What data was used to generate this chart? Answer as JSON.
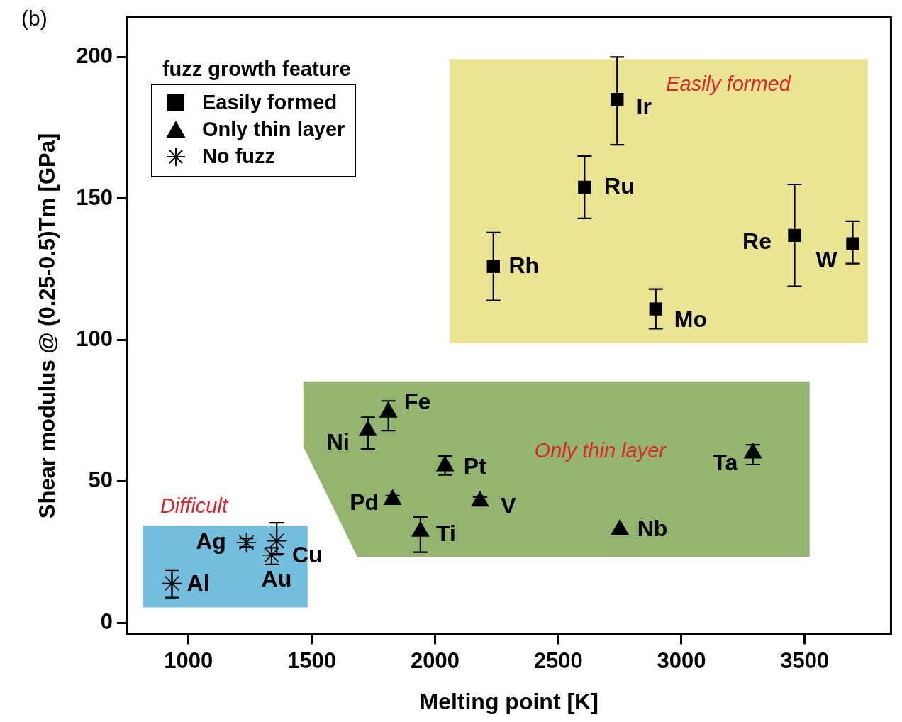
{
  "chart_data": {
    "type": "scatter",
    "xlabel": "Melting point [K]",
    "ylabel": "Shear modulus @ (0.25-0.5)Tm [GPa]",
    "legend_title": "fuzz growth feature",
    "legend": "top left",
    "xlim": [
      750,
      3850
    ],
    "xticks": [
      1000,
      1500,
      2000,
      2500,
      3000,
      3500
    ],
    "ylim": [
      -4,
      214
    ],
    "yticks": [
      0,
      50,
      100,
      150,
      200
    ],
    "series": [
      {
        "name": "Easily formed",
        "color": "#000000",
        "marker": "square",
        "x": [
          2237,
          2607,
          2739,
          2896,
          3459,
          3695
        ],
        "values": [
          126,
          154,
          185,
          111,
          137,
          134
        ],
        "errors": [
          [
            114,
            138
          ],
          [
            143,
            165
          ],
          [
            169,
            200
          ],
          [
            104,
            118
          ],
          [
            119,
            155
          ],
          [
            127,
            142
          ]
        ],
        "value_labels": [
          "Rh",
          "Ru",
          "Ir",
          "Mo",
          "Re",
          "W"
        ]
      },
      {
        "name": "Only thin layer",
        "color": "#000000",
        "marker": "triangle",
        "x": [
          1811,
          1728,
          2041,
          1828,
          2183,
          1941,
          2750,
          3290
        ],
        "values": [
          74.5,
          68,
          55.5,
          43.6,
          43,
          32.4,
          33,
          60
        ],
        "errors": [
          [
            68,
            78.5
          ],
          [
            61.5,
            72.7
          ],
          [
            52.3,
            59
          ],
          [
            42,
            45
          ],
          [
            41.5,
            44.5
          ],
          [
            25,
            37.4
          ],
          null,
          [
            56,
            63
          ]
        ],
        "value_labels": [
          "Fe",
          "Ni",
          "Pt",
          "Pd",
          "V",
          "Ti",
          "Nb",
          "Ta"
        ]
      },
      {
        "name": "No fuzz",
        "color": "#000000",
        "marker": "cross",
        "x": [
          933,
          1235,
          1337,
          1358
        ],
        "values": [
          14,
          28.4,
          24,
          29
        ],
        "errors": [
          [
            9,
            18.7
          ],
          [
            26.9,
            29.9
          ],
          [
            20.7,
            26.6
          ],
          [
            24.4,
            35.4
          ]
        ],
        "value_labels": [
          "Al",
          "Ag",
          "Au",
          "Cu"
        ]
      }
    ],
    "annotations": [
      "(b)",
      "Easily formed",
      "Only thin layer",
      "Difficult"
    ]
  }
}
